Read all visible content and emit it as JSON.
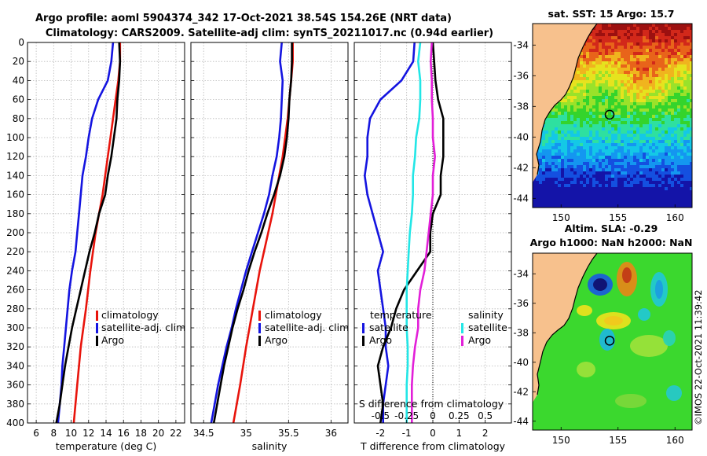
{
  "header": {
    "title_line1": "Argo profile: aoml 5904374_342 17-Oct-2021 38.54S 154.26E (NRT data)",
    "title_line2": "Climatology: CARS2009. Satellite-adj clim: synTS_20211017.nc (0.94d earlier)"
  },
  "timestamp": "©IMOS 22-Oct-2021 11:39:42",
  "colors": {
    "climatology": "#e8140c",
    "satellite_adj": "#1414e0",
    "argo": "#000000",
    "salinity_satellite": "#22e6e6",
    "salinity_argo": "#e21fd8",
    "grid": "#b9b9b9",
    "land": "#f7c18d"
  },
  "chart_data": [
    {
      "id": "temperature",
      "type": "line",
      "xlabel": "temperature (deg C)",
      "ylabel": "",
      "xlim": [
        5,
        23
      ],
      "ylim": [
        400,
        0
      ],
      "xticks": [
        6,
        8,
        10,
        12,
        14,
        16,
        18,
        20,
        22
      ],
      "yticks": [
        0,
        20,
        40,
        60,
        80,
        100,
        120,
        140,
        160,
        180,
        200,
        220,
        240,
        260,
        280,
        300,
        320,
        340,
        360,
        380,
        400
      ],
      "legend": [
        "climatology",
        "satellite-adj. clim",
        "Argo"
      ],
      "series": [
        {
          "name": "climatology",
          "color": "#e8140c",
          "depth": [
            0,
            20,
            40,
            60,
            80,
            100,
            120,
            140,
            160,
            180,
            200,
            240,
            280,
            320,
            360,
            400
          ],
          "values": [
            15.6,
            15.6,
            15.4,
            15.1,
            14.8,
            14.5,
            14.2,
            13.9,
            13.6,
            13.2,
            12.8,
            12.2,
            11.7,
            11.1,
            10.7,
            10.3
          ]
        },
        {
          "name": "satellite-adj. clim",
          "color": "#1414e0",
          "depth": [
            0,
            20,
            40,
            60,
            80,
            100,
            120,
            140,
            160,
            180,
            200,
            220,
            240,
            260,
            280,
            300,
            320,
            340,
            360,
            380,
            400
          ],
          "values": [
            14.8,
            14.6,
            14.2,
            13.1,
            12.4,
            12.0,
            11.7,
            11.3,
            11.1,
            10.9,
            10.7,
            10.5,
            10.1,
            9.8,
            9.6,
            9.4,
            9.2,
            9.0,
            8.9,
            8.7,
            8.5
          ]
        },
        {
          "name": "Argo",
          "color": "#000000",
          "depth": [
            0,
            20,
            40,
            60,
            80,
            100,
            120,
            140,
            160,
            180,
            200,
            220,
            240,
            260,
            280,
            300,
            320,
            340,
            360,
            380,
            400
          ],
          "values": [
            15.5,
            15.6,
            15.5,
            15.3,
            15.2,
            14.9,
            14.6,
            14.2,
            13.9,
            13.2,
            12.7,
            12.1,
            11.6,
            11.1,
            10.6,
            10.1,
            9.7,
            9.3,
            9.0,
            8.7,
            8.3
          ]
        }
      ]
    },
    {
      "id": "salinity",
      "type": "line",
      "xlabel": "salinity",
      "ylabel": "",
      "xlim": [
        34.35,
        36.2
      ],
      "ylim": [
        400,
        0
      ],
      "xticks": [
        34.5,
        35,
        35.5,
        36
      ],
      "yticks": [
        0,
        20,
        40,
        60,
        80,
        100,
        120,
        140,
        160,
        180,
        200,
        220,
        240,
        260,
        280,
        300,
        320,
        340,
        360,
        380,
        400
      ],
      "legend": [
        "climatology",
        "satellite-adj. clim",
        "Argo"
      ],
      "series": [
        {
          "name": "climatology",
          "color": "#e8140c",
          "depth": [
            0,
            20,
            40,
            60,
            80,
            100,
            120,
            140,
            160,
            180,
            200,
            240,
            280,
            320,
            360,
            400
          ],
          "values": [
            35.55,
            35.55,
            35.53,
            35.51,
            35.49,
            35.46,
            35.43,
            35.39,
            35.35,
            35.31,
            35.26,
            35.16,
            35.08,
            35.0,
            34.93,
            34.85
          ]
        },
        {
          "name": "satellite-adj. clim",
          "color": "#1414e0",
          "depth": [
            0,
            20,
            40,
            60,
            80,
            100,
            120,
            140,
            160,
            180,
            200,
            220,
            240,
            260,
            280,
            300,
            320,
            340,
            360,
            380,
            400
          ],
          "values": [
            35.42,
            35.4,
            35.43,
            35.42,
            35.41,
            35.39,
            35.36,
            35.31,
            35.27,
            35.21,
            35.14,
            35.07,
            35.0,
            34.94,
            34.88,
            34.83,
            34.77,
            34.72,
            34.67,
            34.63,
            34.59
          ]
        },
        {
          "name": "Argo",
          "color": "#000000",
          "depth": [
            0,
            20,
            40,
            60,
            80,
            100,
            120,
            140,
            160,
            180,
            200,
            220,
            240,
            260,
            280,
            300,
            320,
            340,
            360,
            380,
            400
          ],
          "values": [
            35.54,
            35.54,
            35.53,
            35.51,
            35.5,
            35.48,
            35.45,
            35.4,
            35.33,
            35.25,
            35.18,
            35.1,
            35.03,
            34.97,
            34.9,
            34.84,
            34.79,
            34.74,
            34.7,
            34.66,
            34.62
          ]
        }
      ]
    },
    {
      "id": "difference",
      "type": "line",
      "xlabel": "T difference from climatology",
      "top_label": "S difference from climatology",
      "ylim": [
        400,
        0
      ],
      "xlim": [
        -3,
        3
      ],
      "xticks": [
        -2,
        -1,
        0,
        1,
        2
      ],
      "top_xticks": [
        -0.5,
        -0.25,
        0,
        0.25,
        0.5
      ],
      "top_xticks_text": [
        "-0.5",
        "-0.25",
        "0",
        "0.25",
        "0.5"
      ],
      "yticks": [
        0,
        20,
        40,
        60,
        80,
        100,
        120,
        140,
        160,
        180,
        200,
        220,
        240,
        260,
        280,
        300,
        320,
        340,
        360,
        380,
        400
      ],
      "legend_temperature": {
        "title": "temperature",
        "items": [
          "satellite",
          "Argo"
        ]
      },
      "legend_salinity": {
        "title": "salinity",
        "items": [
          "satellite",
          "Argo"
        ]
      },
      "series": [
        {
          "name": "temperature satellite",
          "color": "#1414e0",
          "depth": [
            0,
            20,
            40,
            60,
            80,
            100,
            120,
            140,
            160,
            180,
            200,
            220,
            240,
            260,
            280,
            300,
            320,
            340,
            360,
            380,
            400
          ],
          "values": [
            -0.7,
            -0.75,
            -1.2,
            -2.0,
            -2.4,
            -2.5,
            -2.5,
            -2.6,
            -2.5,
            -2.3,
            -2.1,
            -1.9,
            -2.1,
            -2.0,
            -1.9,
            -1.8,
            -1.8,
            -1.7,
            -1.8,
            -1.9,
            -1.9
          ]
        },
        {
          "name": "temperature Argo",
          "color": "#000000",
          "depth": [
            0,
            20,
            40,
            60,
            80,
            100,
            120,
            140,
            160,
            180,
            200,
            220,
            240,
            260,
            280,
            300,
            320,
            340,
            360,
            380,
            400
          ],
          "values": [
            0.0,
            0.05,
            0.1,
            0.2,
            0.4,
            0.4,
            0.4,
            0.3,
            0.3,
            0.0,
            -0.1,
            -0.1,
            -0.6,
            -1.1,
            -1.4,
            -1.6,
            -1.9,
            -2.1,
            -2.0,
            -1.9,
            -2.0
          ]
        },
        {
          "name": "salinity satellite",
          "color": "#22e6e6",
          "scale": "top",
          "depth": [
            0,
            20,
            40,
            60,
            80,
            100,
            120,
            140,
            160,
            180,
            200,
            220,
            240,
            260,
            280,
            300,
            320,
            340,
            360,
            380,
            400
          ],
          "values": [
            -0.12,
            -0.14,
            -0.12,
            -0.12,
            -0.13,
            -0.16,
            -0.17,
            -0.19,
            -0.19,
            -0.2,
            -0.22,
            -0.23,
            -0.24,
            -0.25,
            -0.25,
            -0.25,
            -0.24,
            -0.24,
            -0.25,
            -0.25,
            -0.25
          ]
        },
        {
          "name": "salinity Argo",
          "color": "#e21fd8",
          "scale": "top",
          "depth": [
            0,
            20,
            40,
            60,
            80,
            100,
            120,
            140,
            160,
            180,
            200,
            220,
            240,
            260,
            280,
            300,
            320,
            340,
            360,
            380,
            400
          ],
          "values": [
            -0.01,
            -0.02,
            -0.01,
            -0.01,
            0.0,
            0.0,
            0.02,
            0.0,
            0.0,
            -0.02,
            -0.04,
            -0.06,
            -0.08,
            -0.12,
            -0.14,
            -0.14,
            -0.17,
            -0.19,
            -0.2,
            -0.2,
            -0.2
          ]
        }
      ]
    },
    {
      "id": "sst_map",
      "type": "heatmap",
      "title": "sat. SST: 15 Argo: 15.7",
      "xlim": [
        147.5,
        161.5
      ],
      "ylim": [
        -44.6,
        -32.6
      ],
      "xticks": [
        150,
        155,
        160
      ],
      "yticks": [
        -34,
        -36,
        -38,
        -40,
        -42,
        -44
      ],
      "marker": {
        "lon": 154.26,
        "lat": -38.54
      }
    },
    {
      "id": "sla_map",
      "type": "heatmap",
      "title": "Altim. SLA: -0.29",
      "subtitle": "Argo h1000: NaN h2000: NaN",
      "xlim": [
        147.5,
        161.5
      ],
      "ylim": [
        -44.6,
        -32.6
      ],
      "xticks": [
        150,
        155,
        160
      ],
      "yticks": [
        -34,
        -36,
        -38,
        -40,
        -42,
        -44
      ],
      "marker": {
        "lon": 154.26,
        "lat": -38.54
      }
    }
  ]
}
